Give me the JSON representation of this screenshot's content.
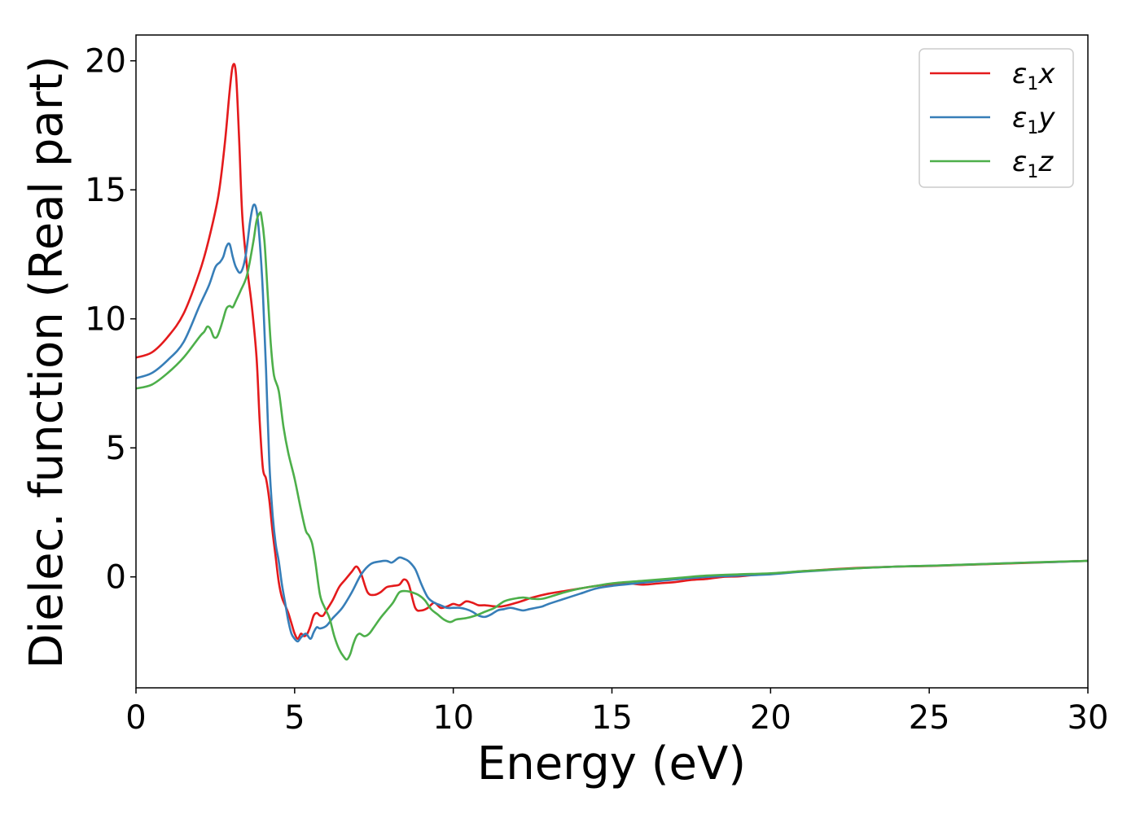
{
  "chart_data": {
    "type": "line",
    "title": "",
    "xlabel": "Energy (eV)",
    "ylabel": "Dielec. function (Real part)",
    "xlim": [
      0,
      30
    ],
    "ylim": [
      -4.3,
      21.0
    ],
    "xticks": [
      0,
      5,
      10,
      15,
      20,
      25,
      30
    ],
    "yticks": [
      0,
      5,
      10,
      15,
      20
    ],
    "grid": false,
    "legend_position": "top-right",
    "series": [
      {
        "name": "ε1x",
        "symbol": "ε",
        "subscript": "1",
        "axis": "x",
        "color": "#e41a1c",
        "x": [
          0,
          0.5,
          1.0,
          1.5,
          2.0,
          2.3,
          2.6,
          2.8,
          2.95,
          3.05,
          3.15,
          3.25,
          3.35,
          3.5,
          3.65,
          3.8,
          3.9,
          4.0,
          4.1,
          4.2,
          4.3,
          4.4,
          4.5,
          4.6,
          4.7,
          4.8,
          4.9,
          5.0,
          5.1,
          5.2,
          5.3,
          5.4,
          5.5,
          5.6,
          5.7,
          5.8,
          5.9,
          6.0,
          6.2,
          6.4,
          6.6,
          6.8,
          6.95,
          7.1,
          7.3,
          7.5,
          7.7,
          7.9,
          8.1,
          8.3,
          8.45,
          8.6,
          8.8,
          9.0,
          9.2,
          9.4,
          9.6,
          9.8,
          10.0,
          10.2,
          10.4,
          10.6,
          10.8,
          11.0,
          11.5,
          12.0,
          12.5,
          13.0,
          13.5,
          14.0,
          14.5,
          15.0,
          15.5,
          16.0,
          16.5,
          17.0,
          17.5,
          18.0,
          18.5,
          19.0,
          19.5,
          20.0,
          21.0,
          22.0,
          23.0,
          24.0,
          25.0,
          26.0,
          27.0,
          28.0,
          29.0,
          30.0
        ],
        "y": [
          8.5,
          8.7,
          9.3,
          10.2,
          11.8,
          13.1,
          14.8,
          16.8,
          18.8,
          19.8,
          19.5,
          17.0,
          14.0,
          12.0,
          10.5,
          8.5,
          6.0,
          4.2,
          3.8,
          3.0,
          1.8,
          0.8,
          -0.2,
          -0.8,
          -1.1,
          -1.4,
          -1.8,
          -2.2,
          -2.4,
          -2.2,
          -2.3,
          -2.2,
          -1.9,
          -1.5,
          -1.4,
          -1.5,
          -1.5,
          -1.3,
          -0.9,
          -0.4,
          -0.1,
          0.2,
          0.4,
          0.1,
          -0.6,
          -0.7,
          -0.6,
          -0.4,
          -0.35,
          -0.3,
          -0.1,
          -0.3,
          -1.2,
          -1.3,
          -1.2,
          -1.0,
          -1.2,
          -1.15,
          -1.05,
          -1.1,
          -0.95,
          -1.0,
          -1.1,
          -1.1,
          -1.15,
          -1.0,
          -0.8,
          -0.65,
          -0.55,
          -0.45,
          -0.35,
          -0.28,
          -0.25,
          -0.3,
          -0.25,
          -0.2,
          -0.12,
          -0.08,
          0.0,
          0.02,
          0.08,
          0.12,
          0.22,
          0.3,
          0.36,
          0.4,
          0.42,
          0.46,
          0.5,
          0.54,
          0.58,
          0.62
        ]
      },
      {
        "name": "ε1y",
        "symbol": "ε",
        "subscript": "1",
        "axis": "y",
        "color": "#377eb8",
        "x": [
          0,
          0.5,
          1.0,
          1.5,
          2.0,
          2.3,
          2.5,
          2.65,
          2.75,
          2.85,
          2.95,
          3.05,
          3.15,
          3.3,
          3.45,
          3.6,
          3.7,
          3.8,
          3.9,
          4.0,
          4.1,
          4.2,
          4.3,
          4.4,
          4.5,
          4.6,
          4.7,
          4.8,
          4.9,
          5.0,
          5.1,
          5.2,
          5.35,
          5.5,
          5.6,
          5.7,
          5.8,
          6.0,
          6.2,
          6.5,
          6.8,
          7.1,
          7.4,
          7.7,
          7.9,
          8.05,
          8.15,
          8.3,
          8.45,
          8.6,
          8.8,
          9.0,
          9.2,
          9.4,
          9.6,
          9.8,
          10.0,
          10.2,
          10.4,
          10.6,
          10.8,
          11.0,
          11.2,
          11.4,
          11.6,
          11.8,
          12.0,
          12.2,
          12.4,
          12.6,
          12.8,
          13.0,
          13.5,
          14.0,
          14.5,
          15.0,
          16.0,
          17.0,
          18.0,
          19.0,
          20.0,
          21.0,
          22.0,
          23.0,
          24.0,
          25.0,
          26.0,
          27.0,
          28.0,
          29.0,
          30.0
        ],
        "y": [
          7.7,
          7.9,
          8.4,
          9.1,
          10.5,
          11.3,
          12.0,
          12.2,
          12.4,
          12.8,
          12.9,
          12.4,
          12.0,
          11.8,
          12.4,
          13.8,
          14.4,
          14.2,
          13.0,
          11.0,
          8.0,
          4.5,
          2.5,
          1.3,
          0.6,
          -0.3,
          -1.0,
          -1.7,
          -2.2,
          -2.4,
          -2.5,
          -2.35,
          -2.2,
          -2.4,
          -2.15,
          -1.95,
          -2.0,
          -1.9,
          -1.6,
          -1.2,
          -0.6,
          0.1,
          0.5,
          0.6,
          0.62,
          0.55,
          0.62,
          0.75,
          0.7,
          0.6,
          0.3,
          -0.3,
          -0.8,
          -1.0,
          -1.1,
          -1.2,
          -1.2,
          -1.2,
          -1.25,
          -1.35,
          -1.5,
          -1.55,
          -1.45,
          -1.3,
          -1.25,
          -1.2,
          -1.25,
          -1.3,
          -1.25,
          -1.2,
          -1.15,
          -1.05,
          -0.85,
          -0.65,
          -0.45,
          -0.35,
          -0.22,
          -0.1,
          0.0,
          0.05,
          0.1,
          0.2,
          0.28,
          0.35,
          0.4,
          0.43,
          0.47,
          0.51,
          0.55,
          0.58,
          0.62
        ]
      },
      {
        "name": "ε1z",
        "symbol": "ε",
        "subscript": "1",
        "axis": "z",
        "color": "#4daf4a",
        "x": [
          0,
          0.5,
          1.0,
          1.5,
          2.0,
          2.15,
          2.25,
          2.35,
          2.45,
          2.55,
          2.65,
          2.75,
          2.85,
          2.95,
          3.05,
          3.15,
          3.3,
          3.5,
          3.7,
          3.8,
          3.9,
          3.95,
          4.05,
          4.15,
          4.25,
          4.35,
          4.5,
          4.65,
          4.8,
          5.0,
          5.2,
          5.35,
          5.45,
          5.55,
          5.65,
          5.8,
          5.95,
          6.1,
          6.25,
          6.4,
          6.55,
          6.65,
          6.75,
          6.85,
          6.95,
          7.05,
          7.2,
          7.35,
          7.5,
          7.7,
          7.9,
          8.1,
          8.3,
          8.5,
          8.7,
          8.9,
          9.1,
          9.3,
          9.5,
          9.7,
          9.9,
          10.1,
          10.4,
          10.7,
          11.0,
          11.3,
          11.6,
          11.9,
          12.2,
          12.5,
          12.8,
          13.1,
          13.5,
          14.0,
          14.5,
          15.0,
          16.0,
          17.0,
          18.0,
          19.0,
          20.0,
          21.0,
          22.0,
          23.0,
          24.0,
          25.0,
          26.0,
          27.0,
          28.0,
          29.0,
          30.0
        ],
        "y": [
          7.3,
          7.45,
          7.9,
          8.5,
          9.3,
          9.5,
          9.7,
          9.6,
          9.3,
          9.3,
          9.6,
          10.0,
          10.4,
          10.5,
          10.45,
          10.7,
          11.1,
          11.7,
          13.0,
          13.8,
          14.1,
          14.0,
          13.0,
          11.0,
          9.0,
          7.8,
          7.2,
          5.8,
          4.8,
          3.8,
          2.6,
          1.8,
          1.6,
          1.3,
          0.6,
          -0.7,
          -1.2,
          -1.6,
          -2.3,
          -2.8,
          -3.1,
          -3.2,
          -3.0,
          -2.6,
          -2.3,
          -2.2,
          -2.3,
          -2.2,
          -1.95,
          -1.6,
          -1.3,
          -1.0,
          -0.6,
          -0.55,
          -0.6,
          -0.7,
          -0.9,
          -1.25,
          -1.45,
          -1.65,
          -1.75,
          -1.65,
          -1.6,
          -1.5,
          -1.35,
          -1.2,
          -0.95,
          -0.85,
          -0.8,
          -0.85,
          -0.85,
          -0.75,
          -0.6,
          -0.45,
          -0.35,
          -0.25,
          -0.15,
          -0.05,
          0.05,
          0.1,
          0.14,
          0.22,
          0.29,
          0.35,
          0.4,
          0.43,
          0.47,
          0.51,
          0.55,
          0.59,
          0.62
        ]
      }
    ]
  }
}
